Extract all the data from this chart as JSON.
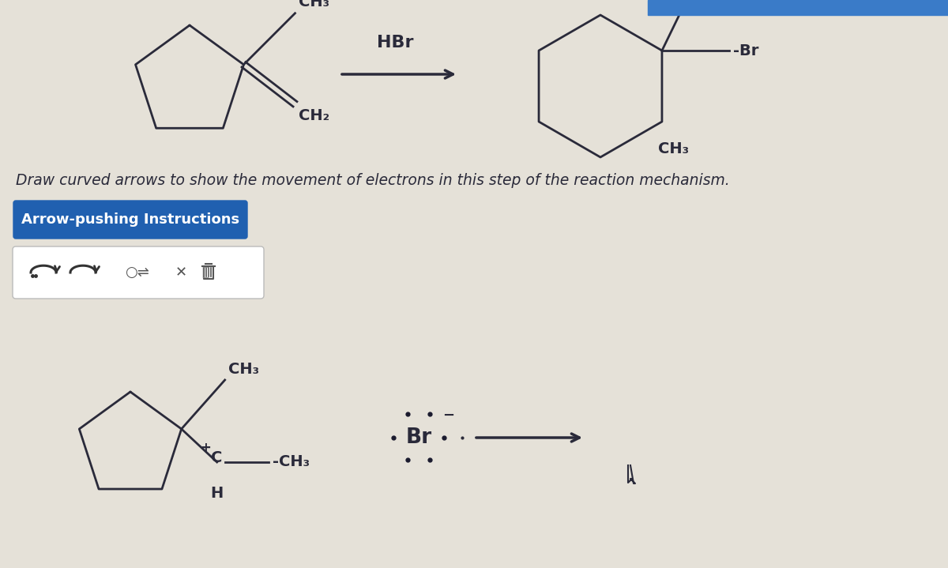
{
  "bg_color": "#e5e1d8",
  "instruction_text": "Draw curved arrows to show the movement of electrons in this step of the reaction mechanism.",
  "button_text": "Arrow-pushing Instructions",
  "button_bg": "#2060b0",
  "button_text_color": "#ffffff",
  "font_color": "#1a1a2e",
  "line_color": "#2a2a3a",
  "reactant_label": "HBr",
  "br_text": "Br",
  "br_charge": "−",
  "ch3_label": "CH₃",
  "ch2_label": "CH₂"
}
